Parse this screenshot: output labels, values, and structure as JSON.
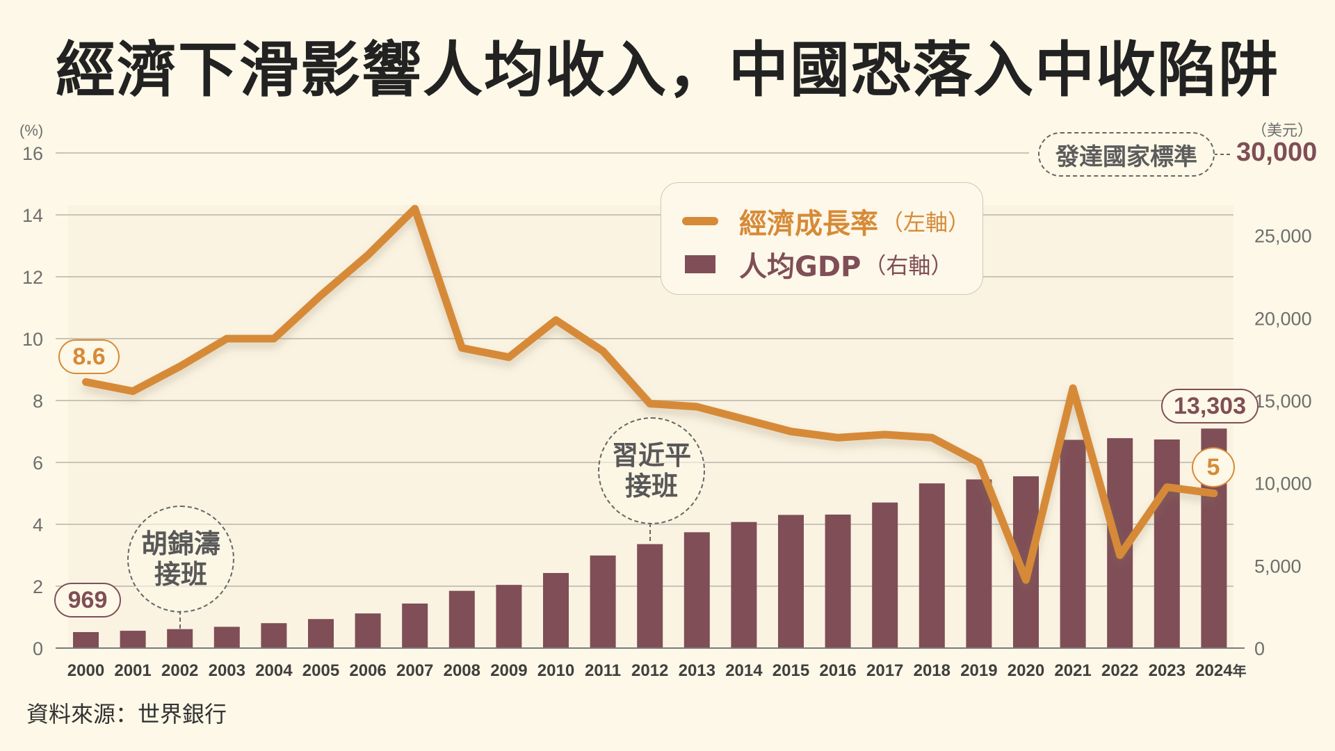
{
  "title": "經濟下滑影響人均收入，中國恐落入中收陷阱",
  "source": "資料來源：世界銀行",
  "colors": {
    "background": "#FDF8E7",
    "growth_line": "#D68A38",
    "gdp_bar": "#7F4E57",
    "grid": "#c9c4b6",
    "axis_text": "#6e6e6e"
  },
  "legend": {
    "growth_label": "經濟成長率",
    "growth_axis": "（左軸）",
    "gdp_label": "人均GDP",
    "gdp_axis": "（右軸）"
  },
  "annotations": {
    "hu": {
      "line1": "胡錦濤",
      "line2": "接班",
      "year": 2002
    },
    "xi": {
      "line1": "習近平",
      "line2": "接班",
      "year": 2012
    },
    "developed_standard": {
      "label": "發達國家標準",
      "value": "30,000"
    },
    "first_growth": "8.6",
    "first_gdp": "969",
    "last_growth": "5",
    "last_gdp": "13,303"
  },
  "chart_data": {
    "type": "bar+line",
    "title": "經濟下滑影響人均收入，中國恐落入中收陷阱",
    "x": [
      "2000",
      "2001",
      "2002",
      "2003",
      "2004",
      "2005",
      "2006",
      "2007",
      "2008",
      "2009",
      "2010",
      "2011",
      "2012",
      "2013",
      "2014",
      "2015",
      "2016",
      "2017",
      "2018",
      "2019",
      "2020",
      "2021",
      "2022",
      "2023",
      "2024"
    ],
    "x_suffix": "年",
    "left_axis": {
      "label": "(%)",
      "ylim": [
        0,
        16
      ],
      "ticks": [
        "0",
        "2",
        "4",
        "6",
        "8",
        "10",
        "12",
        "14",
        "16"
      ]
    },
    "right_axis": {
      "label": "（美元）",
      "ylim": [
        0,
        30000
      ],
      "ticks": [
        "0",
        "5,000",
        "10,000",
        "15,000",
        "20,000",
        "25,000",
        "30,000"
      ]
    },
    "grid": true,
    "legend_position": "top-center",
    "series": [
      {
        "name": "經濟成長率（左軸）",
        "type": "line",
        "axis": "left",
        "values": [
          8.6,
          8.3,
          9.1,
          10.0,
          10.0,
          11.4,
          12.7,
          14.2,
          9.7,
          9.4,
          10.6,
          9.6,
          7.9,
          7.8,
          7.4,
          7.0,
          6.8,
          6.9,
          6.8,
          6.0,
          2.2,
          8.4,
          3.0,
          5.2,
          5.0
        ]
      },
      {
        "name": "人均GDP（右軸）",
        "type": "bar",
        "axis": "right",
        "values": [
          969,
          1050,
          1150,
          1290,
          1510,
          1760,
          2100,
          2700,
          3470,
          3830,
          4550,
          5610,
          6300,
          7020,
          7640,
          8070,
          8090,
          8820,
          9980,
          10220,
          10410,
          12620,
          12720,
          12640,
          13303
        ]
      }
    ]
  }
}
